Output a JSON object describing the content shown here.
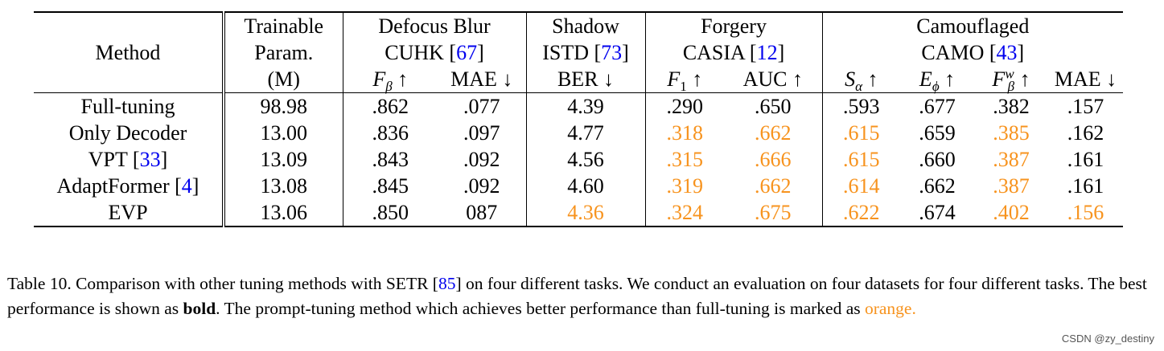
{
  "table": {
    "header": {
      "method": "Method",
      "params_line1": "Trainable",
      "params_line2": "Param.",
      "params_line3": "(M)",
      "groups": [
        {
          "title": "Defocus Blur",
          "dataset": "CUHK",
          "cite": "67"
        },
        {
          "title": "Shadow",
          "dataset": "ISTD",
          "cite": "73"
        },
        {
          "title": "Forgery",
          "dataset": "CASIA",
          "cite": "12"
        },
        {
          "title": "Camouflaged",
          "dataset": "CAMO",
          "cite": "43"
        }
      ],
      "metrics": {
        "f_beta": "F",
        "f_beta_sub": "β",
        "mae": "MAE",
        "ber": "BER",
        "f1": "F",
        "f1_sub": "1",
        "auc": "AUC",
        "s_alpha": "S",
        "s_alpha_sub": "α",
        "e_phi": "E",
        "e_phi_sub": "ϕ",
        "fw_beta": "F",
        "fw_beta_sup": "w",
        "fw_beta_sub": "β",
        "up": "↑",
        "down": "↓"
      }
    },
    "rows": [
      {
        "method": "Full-tuning",
        "cite": "",
        "params": "98.98",
        "cells": [
          ".862",
          ".077",
          "4.39",
          ".290",
          ".650",
          ".593",
          ".677",
          ".382",
          ".157"
        ],
        "style": [
          "bold",
          "bold",
          "",
          "",
          "",
          "",
          "bold",
          "",
          ""
        ]
      },
      {
        "method": "Only Decoder",
        "cite": "",
        "params": "13.00",
        "cells": [
          ".836",
          ".097",
          "4.77",
          ".318",
          ".662",
          ".615",
          ".659",
          ".385",
          ".162"
        ],
        "style": [
          "",
          "",
          "",
          "orange",
          "orange",
          "orange",
          "",
          "orange",
          ""
        ]
      },
      {
        "method": "VPT",
        "cite": "33",
        "params": "13.09",
        "cells": [
          ".843",
          ".092",
          "4.56",
          ".315",
          ".666",
          ".615",
          ".660",
          ".387",
          ".161"
        ],
        "style": [
          "",
          "",
          "",
          "orange",
          "orange",
          "orange",
          "",
          "orange",
          ""
        ]
      },
      {
        "method": "AdaptFormer",
        "cite": "4",
        "params": "13.08",
        "cells": [
          ".845",
          ".092",
          "4.60",
          ".319",
          ".662",
          ".614",
          ".662",
          ".387",
          ".161"
        ],
        "style": [
          "",
          "",
          "",
          "orange",
          "orange",
          "orange",
          "",
          "orange",
          ""
        ]
      },
      {
        "method": "EVP",
        "cite": "",
        "params": "13.06",
        "cells": [
          ".850",
          "087",
          "4.36",
          ".324",
          ".675",
          ".622",
          ".674",
          ".402",
          ".156"
        ],
        "style": [
          "",
          "",
          "bold orange",
          "bold orange",
          "bold orange",
          "bold orange",
          "",
          "bold orange",
          "bold orange"
        ]
      }
    ]
  },
  "caption": {
    "part1": "Table 10. Comparison with other tuning methods with SETR [",
    "cite": "85",
    "part2": "] on four different tasks. We conduct an evaluation on four datasets for four different tasks. The best performance is shown as ",
    "bold_word": "bold",
    "part3": ". The prompt-tuning method which achieves better performance than full-tuning is marked as ",
    "orange_word": "orange.",
    "orange_color": "#f7931e",
    "cite_color": "#0000ee"
  },
  "watermark": "CSDN @zy_destiny"
}
